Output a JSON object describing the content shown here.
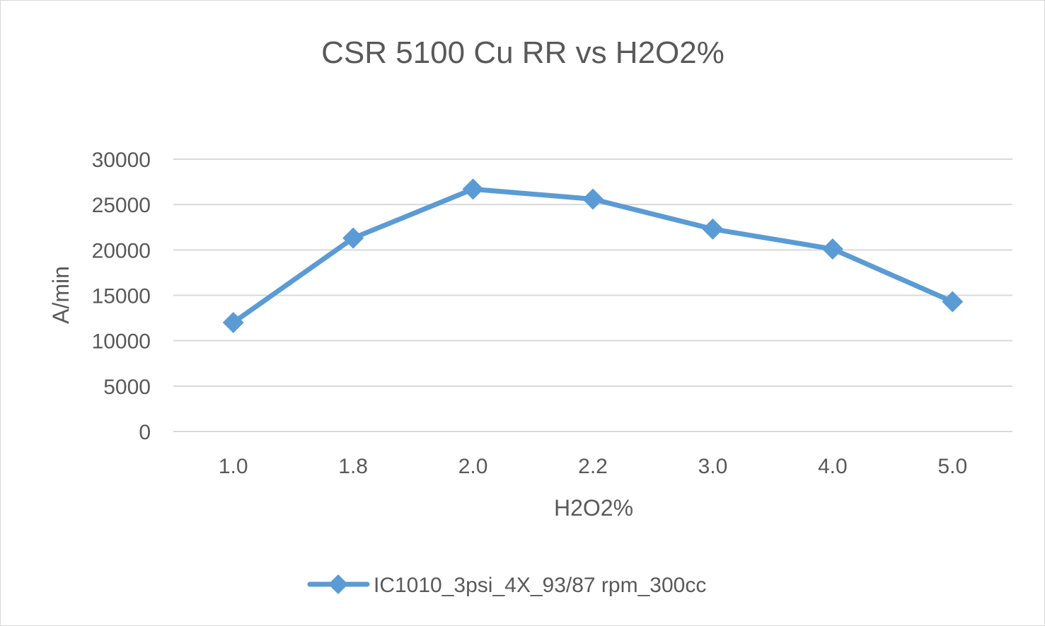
{
  "chart_data": {
    "type": "line",
    "title": "CSR 5100 Cu RR vs H2O2%",
    "xlabel": "H2O2%",
    "ylabel": "A/min",
    "categories": [
      "1.0",
      "1.8",
      "2.0",
      "2.2",
      "3.0",
      "4.0",
      "5.0"
    ],
    "series": [
      {
        "name": "IC1010_3psi_4X_93/87 rpm_300cc",
        "values": [
          12000,
          21300,
          26700,
          25600,
          22300,
          20100,
          14300
        ],
        "color": "#5b9bd5",
        "marker": "diamond"
      }
    ],
    "ylim": [
      0,
      30000
    ],
    "yticks": [
      "0",
      "5000",
      "10000",
      "15000",
      "20000",
      "25000",
      "30000"
    ],
    "grid": "horizontal",
    "legend": "bottom",
    "gridColor": "#d9d9d9",
    "textColor": "#595959"
  }
}
